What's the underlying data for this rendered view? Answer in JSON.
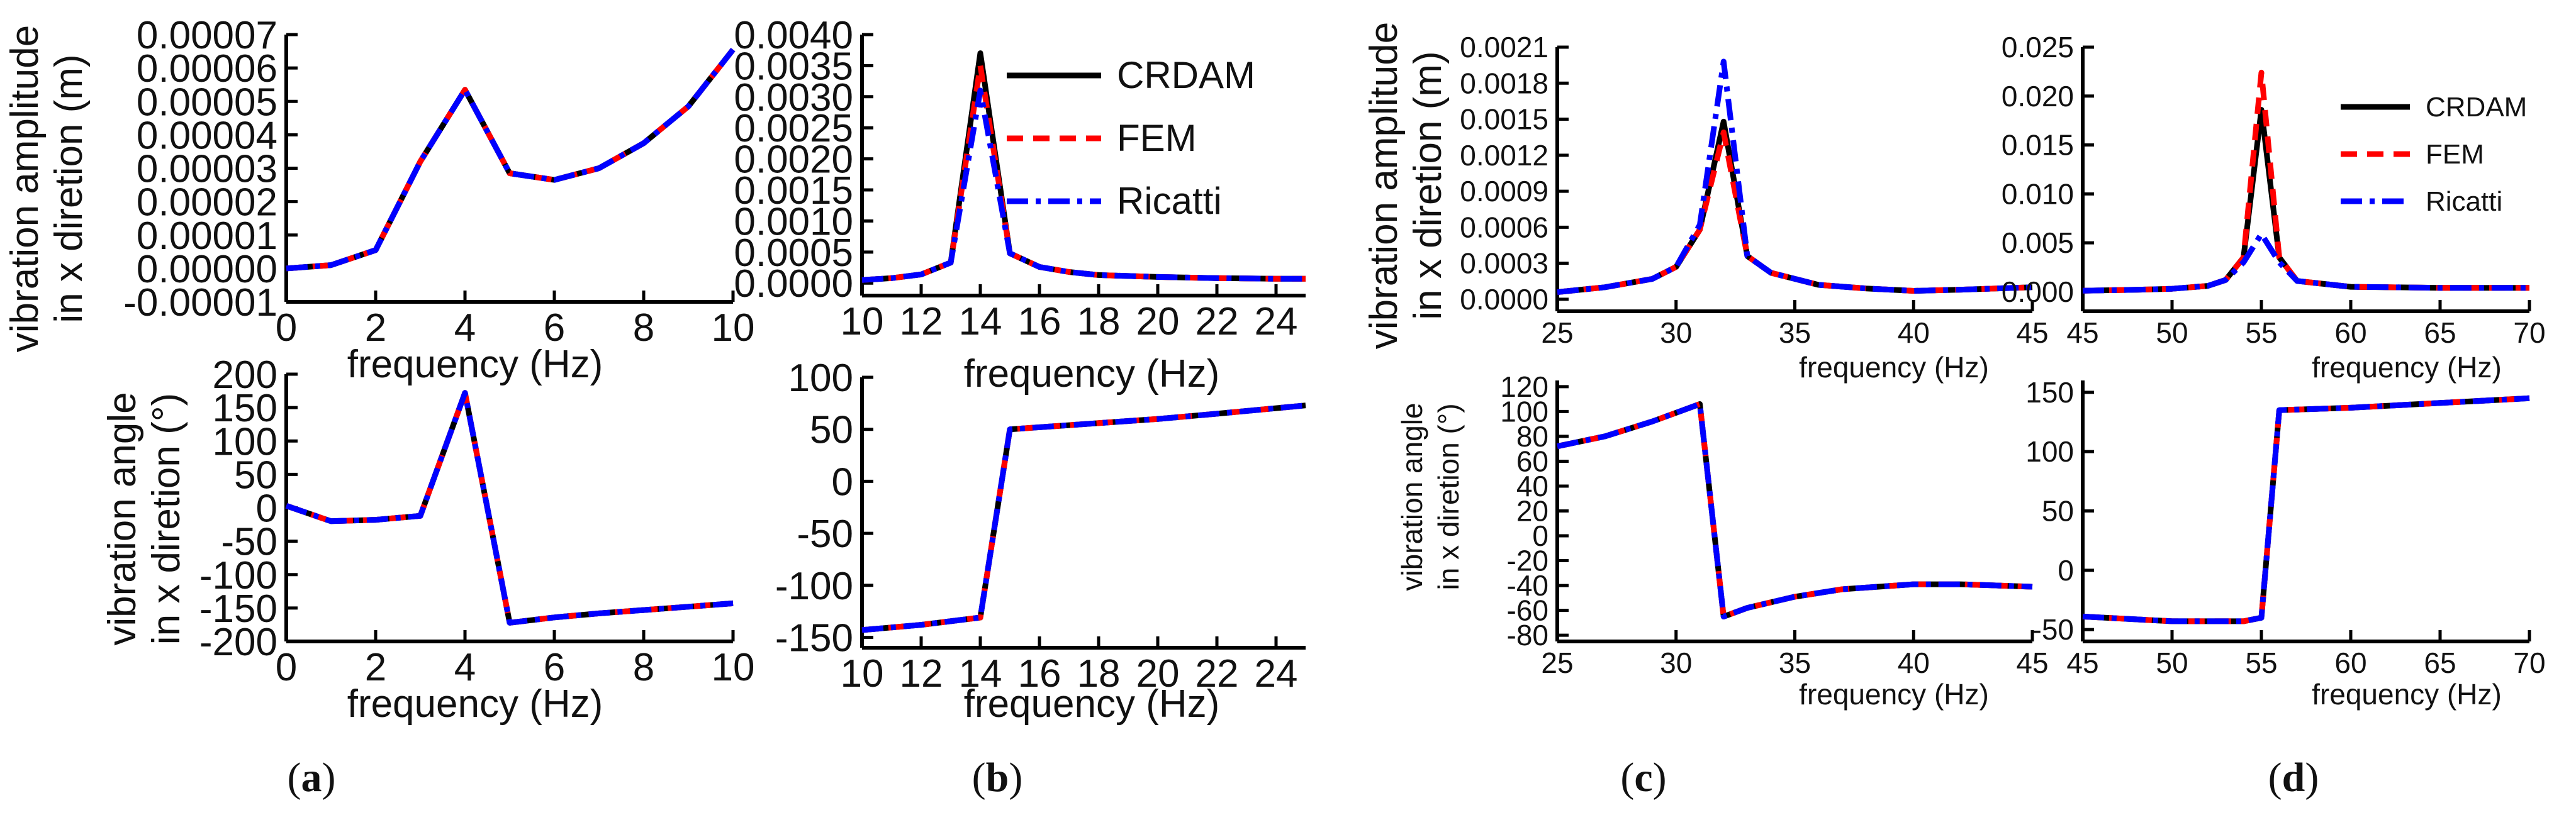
{
  "colors": {
    "crdam": "#000000",
    "fem": "#ff0000",
    "ricatti": "#0000ff"
  },
  "captions": [
    {
      "open": "(",
      "letter": "a",
      "close": ")"
    },
    {
      "open": "(",
      "letter": "b",
      "close": ")"
    },
    {
      "open": "(",
      "letter": "c",
      "close": ")"
    },
    {
      "open": "(",
      "letter": "d",
      "close": ")"
    }
  ],
  "shared_labels": {
    "ab_top": [
      "vibration amplitude",
      "in x diretion (m)"
    ],
    "ab_bottom": [
      "vibration angle",
      "in x diretion (°)"
    ],
    "cd_top": [
      "vibration amplitude",
      "in x diretion (m)"
    ],
    "cd_bottom": [
      "vibration angle",
      "in x diretion (°)"
    ]
  },
  "chart_data": [
    {
      "id": "a-amp",
      "type": "line",
      "xlabel": "frequency (Hz)",
      "ylabel": "",
      "xlim": [
        0,
        10
      ],
      "xticks": [
        0,
        2,
        4,
        6,
        8,
        10
      ],
      "ylim": [
        -1e-05,
        7e-05
      ],
      "yticks": [
        -1e-05,
        0,
        1e-05,
        2e-05,
        3e-05,
        4e-05,
        5e-05,
        6e-05,
        7e-05
      ],
      "yticklabels": [
        "-0.00001",
        "0.00000",
        "0.00001",
        "0.00002",
        "0.00003",
        "0.00004",
        "0.00005",
        "0.00006",
        "0.00007"
      ],
      "x": [
        0,
        1,
        2,
        3,
        4,
        5,
        6,
        7,
        8,
        9,
        10
      ],
      "series": [
        {
          "name": "CRDAM",
          "values": [
            0,
            1e-06,
            5.5e-06,
            3.2e-05,
            5.35e-05,
            2.85e-05,
            2.65e-05,
            3e-05,
            3.75e-05,
            4.85e-05,
            6.55e-05
          ]
        },
        {
          "name": "FEM",
          "values": [
            0,
            1e-06,
            5.5e-06,
            3.2e-05,
            5.35e-05,
            2.85e-05,
            2.65e-05,
            3e-05,
            3.75e-05,
            4.85e-05,
            6.55e-05
          ]
        },
        {
          "name": "Ricatti",
          "values": [
            0,
            1e-06,
            5.5e-06,
            3.2e-05,
            5.35e-05,
            2.85e-05,
            2.65e-05,
            3e-05,
            3.75e-05,
            4.85e-05,
            6.55e-05
          ]
        }
      ]
    },
    {
      "id": "b-amp",
      "type": "line",
      "xlabel": "frequency (Hz)",
      "ylabel": "",
      "xlim": [
        10,
        25
      ],
      "xticks": [
        10,
        12,
        14,
        16,
        18,
        20,
        22,
        24
      ],
      "ylim": [
        -0.0002,
        0.004
      ],
      "yticks": [
        0,
        0.0005,
        0.001,
        0.0015,
        0.002,
        0.0025,
        0.003,
        0.0035,
        0.004
      ],
      "yticklabels": [
        "0.0000",
        "0.0005",
        "0.0010",
        "0.0015",
        "0.0020",
        "0.0025",
        "0.0030",
        "0.0035",
        "0.0040"
      ],
      "x": [
        10,
        11,
        12,
        13,
        14,
        15,
        16,
        17,
        18,
        20,
        22,
        24,
        25
      ],
      "legend": {
        "position": "top-right",
        "entries": [
          "CRDAM",
          "FEM",
          "Ricatti"
        ]
      },
      "series": [
        {
          "name": "CRDAM",
          "values": [
            5e-05,
            8e-05,
            0.00014,
            0.00033,
            0.0037,
            0.00048,
            0.00026,
            0.00018,
            0.00013,
            0.0001,
            8e-05,
            7e-05,
            7e-05
          ]
        },
        {
          "name": "FEM",
          "values": [
            5e-05,
            8e-05,
            0.00014,
            0.00033,
            0.0035,
            0.00048,
            0.00026,
            0.00018,
            0.00013,
            0.0001,
            8e-05,
            7e-05,
            7e-05
          ]
        },
        {
          "name": "Ricatti",
          "values": [
            5e-05,
            8e-05,
            0.00014,
            0.00033,
            0.0031,
            0.00048,
            0.00026,
            0.00018,
            0.00013,
            0.0001,
            8e-05,
            7e-05,
            7e-05
          ]
        }
      ]
    },
    {
      "id": "a-ang",
      "type": "line",
      "xlabel": "frequency (Hz)",
      "ylabel": "",
      "xlim": [
        0,
        10
      ],
      "xticks": [
        0,
        2,
        4,
        6,
        8,
        10
      ],
      "ylim": [
        -200,
        200
      ],
      "yticks": [
        -200,
        -150,
        -100,
        -50,
        0,
        50,
        100,
        150,
        200
      ],
      "yticklabels": [
        "-200",
        "-150",
        "-100",
        "-50",
        "0",
        "50",
        "100",
        "150",
        "200"
      ],
      "x": [
        0,
        1,
        2,
        3,
        4,
        5,
        6,
        7,
        8,
        9,
        10
      ],
      "series": [
        {
          "name": "CRDAM",
          "values": [
            3,
            -20,
            -18,
            -12,
            172,
            -172,
            -164,
            -158,
            -153,
            -148,
            -143
          ]
        },
        {
          "name": "FEM",
          "values": [
            3,
            -20,
            -18,
            -12,
            172,
            -172,
            -164,
            -158,
            -153,
            -148,
            -143
          ]
        },
        {
          "name": "Ricatti",
          "values": [
            3,
            -20,
            -18,
            -12,
            172,
            -172,
            -164,
            -158,
            -153,
            -148,
            -143
          ]
        }
      ]
    },
    {
      "id": "b-ang",
      "type": "line",
      "xlabel": "frequency (Hz)",
      "ylabel": "",
      "xlim": [
        10,
        25
      ],
      "xticks": [
        10,
        12,
        14,
        16,
        18,
        20,
        22,
        24
      ],
      "ylim": [
        -160,
        100
      ],
      "yticks": [
        -150,
        -100,
        -50,
        0,
        50,
        100
      ],
      "yticklabels": [
        "-150",
        "-100",
        "-50",
        "0",
        "50",
        "100"
      ],
      "x": [
        10,
        12,
        14,
        15,
        17,
        20,
        22,
        25
      ],
      "series": [
        {
          "name": "CRDAM",
          "values": [
            -143,
            -138,
            -131,
            50,
            54,
            60,
            65,
            73
          ]
        },
        {
          "name": "FEM",
          "values": [
            -143,
            -138,
            -131,
            50,
            54,
            60,
            65,
            73
          ]
        },
        {
          "name": "Ricatti",
          "values": [
            -143,
            -138,
            -131,
            50,
            54,
            60,
            65,
            73
          ]
        }
      ]
    },
    {
      "id": "c-amp",
      "type": "line",
      "xlabel": "frequency (Hz)",
      "ylabel": "",
      "xlim": [
        25,
        45
      ],
      "xticks": [
        25,
        30,
        35,
        40,
        45
      ],
      "ylim": [
        -0.0001,
        0.0021
      ],
      "yticks": [
        0,
        0.0003,
        0.0006,
        0.0009,
        0.0012,
        0.0015,
        0.0018,
        0.0021
      ],
      "yticklabels": [
        "0.0000",
        "0.0003",
        "0.0006",
        "0.0009",
        "0.0012",
        "0.0015",
        "0.0018",
        "0.0021"
      ],
      "x": [
        25,
        27,
        29,
        30,
        31,
        32,
        33,
        34,
        36,
        38,
        40,
        42,
        45
      ],
      "series": [
        {
          "name": "CRDAM",
          "values": [
            6e-05,
            0.0001,
            0.00017,
            0.00027,
            0.00058,
            0.00148,
            0.00036,
            0.00022,
            0.00012,
            9e-05,
            7e-05,
            8e-05,
            0.0001
          ]
        },
        {
          "name": "FEM",
          "values": [
            6e-05,
            0.0001,
            0.00017,
            0.00027,
            0.00058,
            0.00139,
            0.00036,
            0.00022,
            0.00012,
            9e-05,
            7e-05,
            8e-05,
            0.0001
          ]
        },
        {
          "name": "Ricatti",
          "values": [
            6e-05,
            0.0001,
            0.00017,
            0.00027,
            0.00062,
            0.00198,
            0.00036,
            0.00022,
            0.00012,
            9e-05,
            7e-05,
            8e-05,
            0.0001
          ]
        }
      ]
    },
    {
      "id": "d-amp",
      "type": "line",
      "xlabel": "frequency (Hz)",
      "ylabel": "",
      "xlim": [
        45,
        70
      ],
      "xticks": [
        45,
        50,
        55,
        60,
        65,
        70
      ],
      "ylim": [
        -0.002,
        0.025
      ],
      "yticks": [
        0,
        0.005,
        0.01,
        0.015,
        0.02,
        0.025
      ],
      "yticklabels": [
        "0.000",
        "0.005",
        "0.010",
        "0.015",
        "0.020",
        "0.025"
      ],
      "x": [
        45,
        48,
        50,
        52,
        53,
        54,
        55,
        56,
        57,
        60,
        65,
        70
      ],
      "legend": {
        "position": "top-right",
        "entries": [
          "CRDAM",
          "FEM",
          "Ricatti"
        ]
      },
      "series": [
        {
          "name": "CRDAM",
          "values": [
            0.0001,
            0.0002,
            0.0003,
            0.0006,
            0.0012,
            0.0035,
            0.0186,
            0.0035,
            0.0011,
            0.0005,
            0.0004,
            0.0004
          ]
        },
        {
          "name": "FEM",
          "values": [
            0.0001,
            0.0002,
            0.0003,
            0.0006,
            0.0012,
            0.0035,
            0.0224,
            0.0035,
            0.0011,
            0.0005,
            0.0004,
            0.0004
          ]
        },
        {
          "name": "Ricatti",
          "values": [
            0.0001,
            0.0002,
            0.0003,
            0.0006,
            0.0012,
            0.003,
            0.0059,
            0.003,
            0.0011,
            0.0005,
            0.0004,
            0.0004
          ]
        }
      ]
    },
    {
      "id": "c-ang",
      "type": "line",
      "xlabel": "frequency (Hz)",
      "ylabel": "",
      "xlim": [
        25,
        45
      ],
      "xticks": [
        25,
        30,
        35,
        40,
        45
      ],
      "ylim": [
        -85,
        125
      ],
      "yticks": [
        -80,
        -60,
        -40,
        -20,
        0,
        20,
        40,
        60,
        80,
        100,
        120
      ],
      "yticklabels": [
        "-80",
        "-60",
        "-40",
        "-20",
        "0",
        "20",
        "40",
        "60",
        "80",
        "100",
        "120"
      ],
      "x": [
        25,
        27,
        29,
        31,
        32,
        33,
        35,
        37,
        40,
        42,
        45
      ],
      "series": [
        {
          "name": "CRDAM",
          "values": [
            72,
            80,
            92,
            106,
            -65,
            -58,
            -49,
            -43,
            -39,
            -39,
            -41
          ]
        },
        {
          "name": "FEM",
          "values": [
            72,
            80,
            92,
            106,
            -65,
            -58,
            -49,
            -43,
            -39,
            -39,
            -41
          ]
        },
        {
          "name": "Ricatti",
          "values": [
            72,
            80,
            92,
            106,
            -65,
            -58,
            -49,
            -43,
            -39,
            -39,
            -41
          ]
        }
      ]
    },
    {
      "id": "d-ang",
      "type": "line",
      "xlabel": "frequency (Hz)",
      "ylabel": "",
      "xlim": [
        45,
        70
      ],
      "xticks": [
        45,
        50,
        55,
        60,
        65,
        70
      ],
      "ylim": [
        -60,
        160
      ],
      "yticks": [
        -50,
        0,
        50,
        100,
        150
      ],
      "yticklabels": [
        "-50",
        "0",
        "50",
        "100",
        "150"
      ],
      "x": [
        45,
        50,
        54,
        55,
        56,
        60,
        65,
        70
      ],
      "series": [
        {
          "name": "CRDAM",
          "values": [
            -39,
            -43,
            -43,
            -40,
            135,
            137,
            141,
            145
          ]
        },
        {
          "name": "FEM",
          "values": [
            -39,
            -43,
            -43,
            -40,
            135,
            137,
            141,
            145
          ]
        },
        {
          "name": "Ricatti",
          "values": [
            -39,
            -43,
            -43,
            -40,
            135,
            137,
            141,
            145
          ]
        }
      ]
    }
  ]
}
